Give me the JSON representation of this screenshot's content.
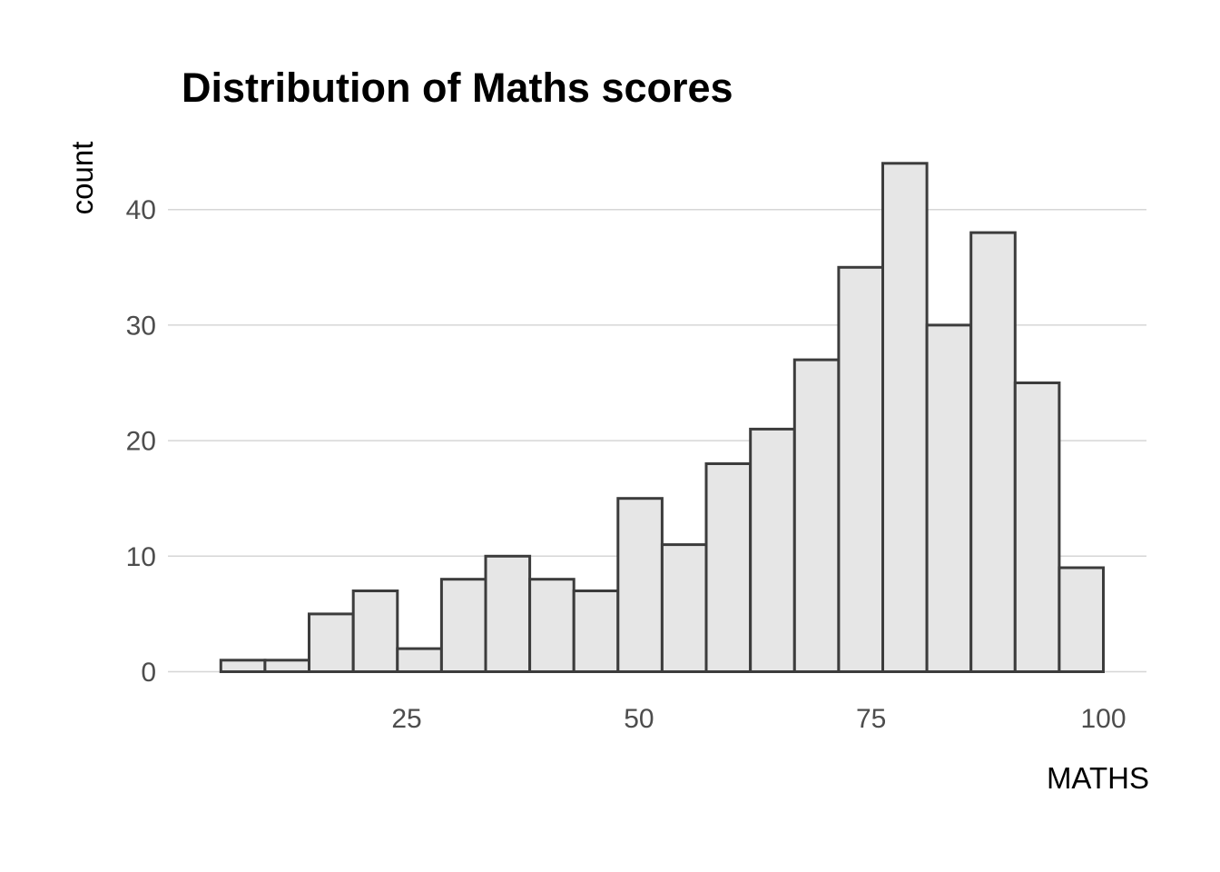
{
  "figure": {
    "background": "#ffffff"
  },
  "chart_data": {
    "type": "bar",
    "subtype": "histogram",
    "title": "Distribution of Maths scores",
    "xlabel": "MATHS",
    "ylabel": "count",
    "bins": {
      "start": 5,
      "width": 4.75,
      "count": 20
    },
    "counts": [
      1,
      1,
      5,
      7,
      2,
      8,
      10,
      8,
      7,
      15,
      11,
      18,
      21,
      27,
      35,
      44,
      30,
      38,
      25,
      9
    ],
    "x_ticks": [
      "25",
      "50",
      "75",
      "100"
    ],
    "x_tick_values": [
      25,
      50,
      75,
      100
    ],
    "y_ticks": [
      "0",
      "10",
      "20",
      "30",
      "40"
    ],
    "y_tick_values": [
      0,
      10,
      20,
      30,
      40
    ],
    "xlim": [
      -0.7,
      104.8
    ],
    "ylim": [
      0,
      46.2
    ],
    "grid": {
      "horizontal": true,
      "vertical": false
    },
    "legend": "none",
    "colors": {
      "bar_fill": "#e6e6e6",
      "bar_stroke": "#3c3c3c",
      "gridline": "#d6d6d6",
      "tick_label": "#4d4d4d",
      "text": "#000000",
      "background": "#ffffff"
    }
  }
}
